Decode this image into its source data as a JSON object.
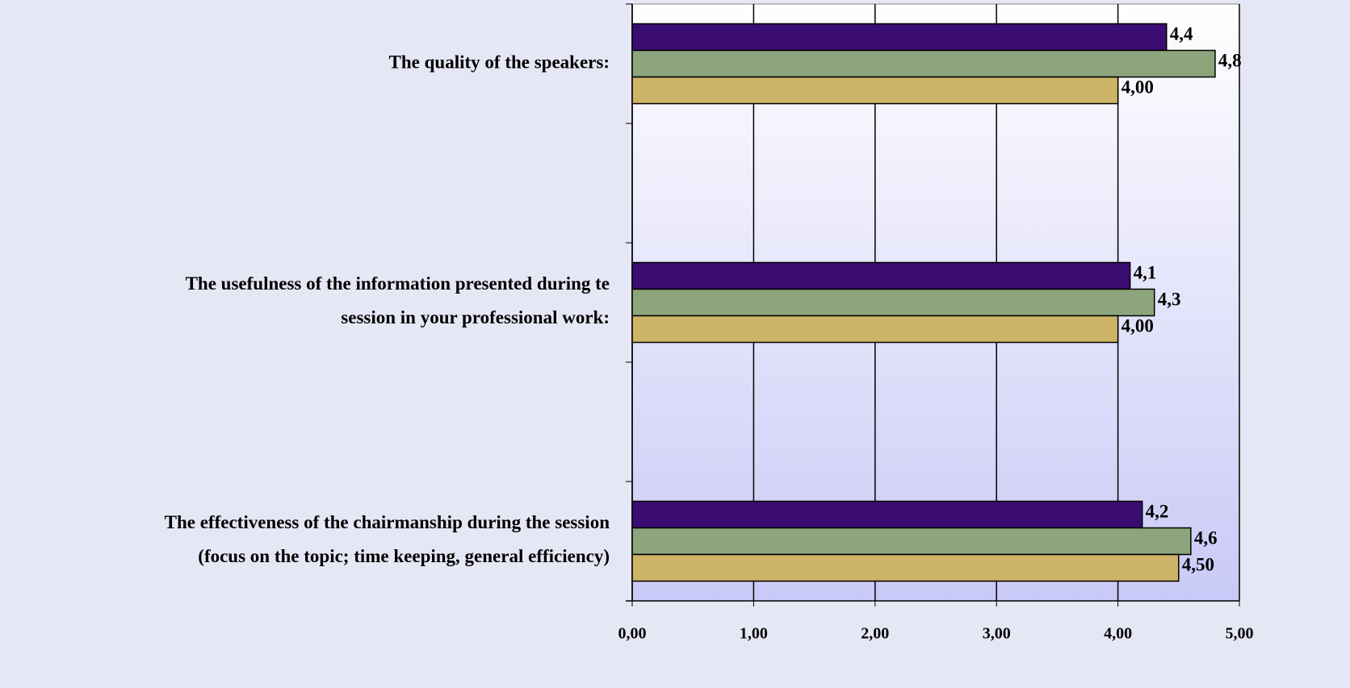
{
  "chart_data": {
    "type": "bar",
    "orientation": "horizontal",
    "categories": [
      "The quality of the speakers:",
      null,
      "The usefulness of the information presented during te\nsession in your professional work:",
      null,
      "The effectiveness of the chairmanship during the session\n(focus on the topic; time keeping, general efficiency)"
    ],
    "series": [
      {
        "color": "#3b0d72",
        "values": [
          4.4,
          null,
          4.1,
          null,
          4.2
        ],
        "value_labels": [
          "4,4",
          null,
          "4,1",
          null,
          "4,2"
        ]
      },
      {
        "color": "#8da57c",
        "values": [
          4.8,
          null,
          4.3,
          null,
          4.6
        ],
        "value_labels": [
          "4,8",
          null,
          "4,3",
          null,
          "4,6"
        ]
      },
      {
        "color": "#cdb466",
        "values": [
          4.0,
          null,
          4.0,
          null,
          4.5
        ],
        "value_labels": [
          "4,00",
          null,
          "4,00",
          null,
          "4,50"
        ]
      }
    ],
    "xlim": [
      0,
      5
    ],
    "xticks": [
      {
        "value": 0,
        "label": "0,00"
      },
      {
        "value": 1,
        "label": "1,00"
      },
      {
        "value": 2,
        "label": "2,00"
      },
      {
        "value": 3,
        "label": "3,00"
      },
      {
        "value": 4,
        "label": "4,00"
      },
      {
        "value": 5,
        "label": "5,00"
      }
    ],
    "grid": true
  }
}
